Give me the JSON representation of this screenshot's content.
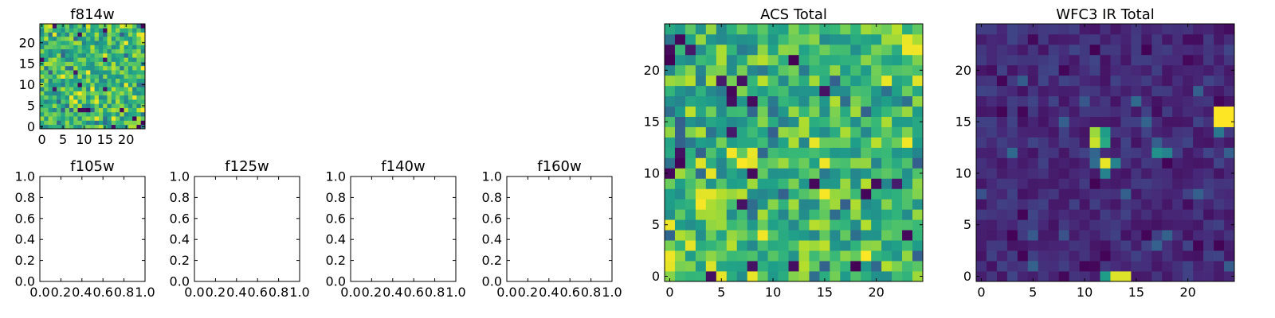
{
  "chart_data": [
    {
      "type": "heatmap",
      "title": "f814w",
      "grid_size": 25,
      "xlim": [
        -0.5,
        24.5
      ],
      "ylim": [
        -0.5,
        24.5
      ],
      "xticks": [
        0,
        5,
        10,
        15,
        20
      ],
      "yticks": [
        0,
        5,
        10,
        15,
        20
      ],
      "xtick_labels": [
        "0",
        "5",
        "10",
        "15",
        "20"
      ],
      "ytick_labels": [
        "0",
        "5",
        "10",
        "15",
        "20"
      ],
      "colormap": "viridis",
      "seed": 814,
      "distribution": "mid-high noise",
      "hotspots": [
        {
          "x": 24,
          "y": 22,
          "v": 0.98
        },
        {
          "x": 24,
          "y": 21,
          "v": 0.96
        },
        {
          "x": 23,
          "y": 22,
          "v": 0.95
        }
      ]
    },
    {
      "type": "table",
      "title": "f105w",
      "empty": true,
      "xticks": [
        0,
        0.2,
        0.4,
        0.6,
        0.8,
        1.0
      ],
      "xtick_labels": [
        "0.0",
        "0.2",
        "0.4",
        "0.6",
        "0.8",
        "1.0"
      ],
      "yticks": [
        0,
        0.2,
        0.4,
        0.6,
        0.8,
        1.0
      ],
      "ytick_labels": [
        "0.0",
        "0.2",
        "0.4",
        "0.6",
        "0.8",
        "1.0"
      ]
    },
    {
      "type": "table",
      "title": "f125w",
      "empty": true,
      "xticks": [
        0,
        0.2,
        0.4,
        0.6,
        0.8,
        1.0
      ],
      "xtick_labels": [
        "0.0",
        "0.2",
        "0.4",
        "0.6",
        "0.8",
        "1.0"
      ],
      "yticks": [
        0,
        0.2,
        0.4,
        0.6,
        0.8,
        1.0
      ],
      "ytick_labels": [
        "0.0",
        "0.2",
        "0.4",
        "0.6",
        "0.8",
        "1.0"
      ]
    },
    {
      "type": "table",
      "title": "f140w",
      "empty": true,
      "xticks": [
        0,
        0.2,
        0.4,
        0.6,
        0.8,
        1.0
      ],
      "xtick_labels": [
        "0.0",
        "0.2",
        "0.4",
        "0.6",
        "0.8",
        "1.0"
      ],
      "yticks": [
        0,
        0.2,
        0.4,
        0.6,
        0.8,
        1.0
      ],
      "ytick_labels": [
        "0.0",
        "0.2",
        "0.4",
        "0.6",
        "0.8",
        "1.0"
      ]
    },
    {
      "type": "table",
      "title": "f160w",
      "empty": true,
      "xticks": [
        0,
        0.2,
        0.4,
        0.6,
        0.8,
        1.0
      ],
      "xtick_labels": [
        "0.0",
        "0.2",
        "0.4",
        "0.6",
        "0.8",
        "1.0"
      ],
      "yticks": [
        0,
        0.2,
        0.4,
        0.6,
        0.8,
        1.0
      ],
      "ytick_labels": [
        "0.0",
        "0.2",
        "0.4",
        "0.6",
        "0.8",
        "1.0"
      ]
    },
    {
      "type": "heatmap",
      "title": "ACS Total",
      "grid_size": 25,
      "xlim": [
        -0.5,
        24.5
      ],
      "ylim": [
        -0.5,
        24.5
      ],
      "xticks": [
        0,
        5,
        10,
        15,
        20
      ],
      "yticks": [
        0,
        5,
        10,
        15,
        20
      ],
      "xtick_labels": [
        "0",
        "5",
        "10",
        "15",
        "20"
      ],
      "ytick_labels": [
        "0",
        "5",
        "10",
        "15",
        "20"
      ],
      "colormap": "viridis",
      "seed": 2024,
      "distribution": "mid-high noise",
      "hotspots": [
        {
          "x": 23,
          "y": 22,
          "v": 0.98
        },
        {
          "x": 24,
          "y": 22,
          "v": 0.98
        },
        {
          "x": 23,
          "y": 23,
          "v": 0.97
        },
        {
          "x": 1,
          "y": 23,
          "v": 0.02
        },
        {
          "x": 0,
          "y": 22,
          "v": 0.03
        },
        {
          "x": 0,
          "y": 10,
          "v": 0.02
        },
        {
          "x": 6,
          "y": 17,
          "v": 0.04
        },
        {
          "x": 8,
          "y": 17,
          "v": 0.03
        },
        {
          "x": 14,
          "y": 9,
          "v": 0.02
        },
        {
          "x": 20,
          "y": 9,
          "v": 0.03
        },
        {
          "x": 23,
          "y": 4,
          "v": 0.02
        },
        {
          "x": 8,
          "y": 1,
          "v": 0.05
        },
        {
          "x": 12,
          "y": 1,
          "v": 0.04
        },
        {
          "x": 8,
          "y": 0,
          "v": 0.97
        },
        {
          "x": 8,
          "y": 12,
          "v": 0.97
        },
        {
          "x": 15,
          "y": 11,
          "v": 0.98
        },
        {
          "x": 9,
          "y": 4,
          "v": 0.98
        },
        {
          "x": 14,
          "y": 13,
          "v": 0.97
        },
        {
          "x": 21,
          "y": 19,
          "v": 0.97
        },
        {
          "x": 3,
          "y": 8,
          "v": 0.96
        },
        {
          "x": 4,
          "y": 8,
          "v": 0.96
        }
      ]
    },
    {
      "type": "heatmap",
      "title": "WFC3 IR Total",
      "grid_size": 25,
      "xlim": [
        -0.5,
        24.5
      ],
      "ylim": [
        -0.5,
        24.5
      ],
      "xticks": [
        0,
        5,
        10,
        15,
        20
      ],
      "yticks": [
        0,
        5,
        10,
        15,
        20
      ],
      "xtick_labels": [
        "0",
        "5",
        "10",
        "15",
        "20"
      ],
      "ytick_labels": [
        "0",
        "5",
        "10",
        "15",
        "20"
      ],
      "colormap": "viridis",
      "seed": 3160,
      "distribution": "low noise",
      "hotspots": [
        {
          "x": 23,
          "y": 16,
          "v": 1.0
        },
        {
          "x": 24,
          "y": 16,
          "v": 1.0
        },
        {
          "x": 23,
          "y": 15,
          "v": 1.0
        },
        {
          "x": 24,
          "y": 15,
          "v": 1.0
        },
        {
          "x": 23,
          "y": 14,
          "v": 0.4
        },
        {
          "x": 11,
          "y": 14,
          "v": 0.85
        },
        {
          "x": 12,
          "y": 14,
          "v": 0.55
        },
        {
          "x": 11,
          "y": 13,
          "v": 0.92
        },
        {
          "x": 12,
          "y": 13,
          "v": 0.6
        },
        {
          "x": 12,
          "y": 11,
          "v": 0.97
        },
        {
          "x": 13,
          "y": 11,
          "v": 0.45
        },
        {
          "x": 11,
          "y": 11,
          "v": 0.35
        },
        {
          "x": 12,
          "y": 10,
          "v": 0.45
        },
        {
          "x": 17,
          "y": 12,
          "v": 0.5
        },
        {
          "x": 18,
          "y": 12,
          "v": 0.45
        },
        {
          "x": 17,
          "y": 13,
          "v": 0.3
        },
        {
          "x": 13,
          "y": 0,
          "v": 0.95
        },
        {
          "x": 14,
          "y": 0,
          "v": 0.95
        },
        {
          "x": 12,
          "y": 0,
          "v": 0.55
        },
        {
          "x": 21,
          "y": 8,
          "v": 0.3
        },
        {
          "x": 8,
          "y": 4,
          "v": 0.25
        }
      ]
    }
  ]
}
